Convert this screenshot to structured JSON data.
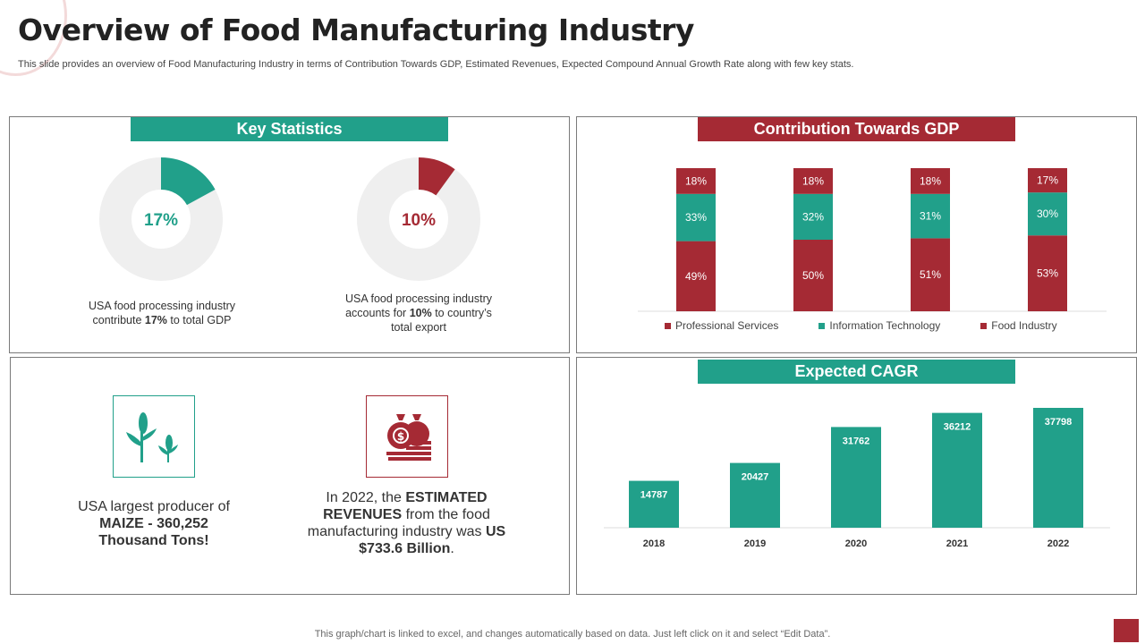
{
  "page": {
    "title": "Overview of Food Manufacturing Industry",
    "subtitle": "This slide provides an overview of Food Manufacturing Industry in terms of Contribution Towards GDP, Estimated Revenues, Expected Compound Annual Growth Rate along with few key stats.",
    "footer": "This graph/chart is linked to excel,  and changes automatically based on data. Just left click on it and select “Edit Data”."
  },
  "colors": {
    "teal": "#21a08a",
    "red": "#a52a34",
    "grey": "#efefef"
  },
  "key_stats": {
    "heading": "Key Statistics",
    "stat1": {
      "value_label": "17%",
      "value": 17,
      "text_pre": "USA food processing industry contribute ",
      "text_bold": "17%",
      "text_post": "  to total GDP"
    },
    "stat2": {
      "value_label": "10%",
      "value": 10,
      "text_pre": "USA food processing industry accounts for ",
      "text_bold": "10%",
      "text_post": "  to country’s total export"
    }
  },
  "facts": {
    "maize": {
      "icon": "corn-plant-icon",
      "pre": "USA largest producer of ",
      "bold": "MAIZE - 360,252 Thousand Tons!"
    },
    "revenue": {
      "icon": "money-bags-icon",
      "pre": "In 2022, the ",
      "bold1": "ESTIMATED REVENUES",
      "mid": " from the food manufacturing  industry  was ",
      "bold2": "US $733.6 Billion",
      "post": "."
    }
  },
  "gdp": {
    "heading": "Contribution Towards GDP"
  },
  "cagr": {
    "heading": "Expected CAGR"
  },
  "chart_data": [
    {
      "type": "bar",
      "stacked": true,
      "title": "Contribution Towards GDP",
      "categories": [
        "",
        "",
        "",
        ""
      ],
      "series": [
        {
          "name": "Food Industry",
          "values": [
            49,
            50,
            51,
            53
          ],
          "labels": [
            "49%",
            "50%",
            "51%",
            "53%"
          ],
          "color": "#a52a34"
        },
        {
          "name": "Information Technology",
          "values": [
            33,
            32,
            31,
            30
          ],
          "labels": [
            "33%",
            "32%",
            "31%",
            "30%"
          ],
          "color": "#21a08a"
        },
        {
          "name": "Professional Services",
          "values": [
            18,
            18,
            18,
            17
          ],
          "labels": [
            "18%",
            "18%",
            "18%",
            "17%"
          ],
          "color": "#a52a34"
        }
      ],
      "legend": [
        "Professional Services",
        "Information Technology",
        "Food Industry"
      ],
      "ylim": [
        0,
        100
      ]
    },
    {
      "type": "bar",
      "title": "Expected CAGR",
      "categories": [
        "2018",
        "2019",
        "2020",
        "2021",
        "2022"
      ],
      "values": [
        14787,
        20427,
        31762,
        36212,
        37798
      ],
      "labels": [
        "14787",
        "20427",
        "31762",
        "36212",
        "37798"
      ],
      "ylim": [
        0,
        40000
      ]
    }
  ]
}
